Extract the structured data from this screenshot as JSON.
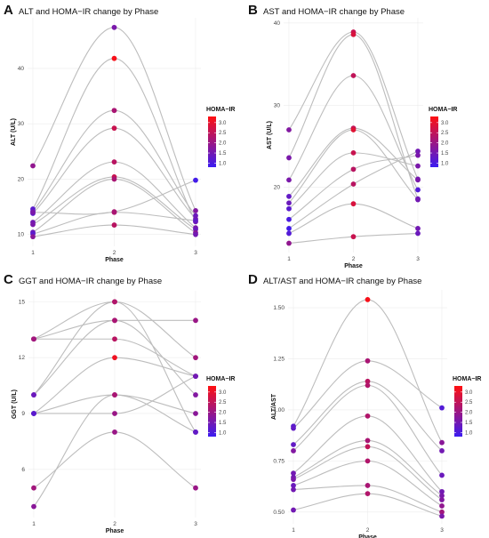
{
  "chart_data": [
    {
      "panel": "A",
      "type": "line",
      "title": "ALT and HOMA−IR change by Phase",
      "xlabel": "Phase",
      "ylabel": "ALT (U/L)",
      "x": [
        1,
        2,
        3
      ],
      "xticks": [
        "1",
        "2",
        "3"
      ],
      "yticks": [
        10,
        20,
        30,
        40
      ],
      "ylim": [
        8.5,
        48.5
      ],
      "legend": {
        "title": "HOMA−IR",
        "ticks": [
          1.0,
          1.5,
          2.0,
          2.5,
          3.0
        ],
        "range": [
          0.8,
          3.3
        ],
        "low_color": "#3b1cf2",
        "high_color": "#ff1010",
        "placement": "right"
      },
      "grid": true,
      "series": [
        {
          "values": [
            22.4,
            47.4,
            14.3
          ],
          "homa": [
            1.9,
            1.6,
            1.7
          ]
        },
        {
          "values": [
            14.6,
            41.8,
            12.3
          ],
          "homa": [
            1.2,
            3.2,
            1.5
          ]
        },
        {
          "values": [
            14.2,
            32.4,
            13.4
          ],
          "homa": [
            1.3,
            2.2,
            1.4
          ]
        },
        {
          "values": [
            13.8,
            29.2,
            12.8
          ],
          "homa": [
            1.2,
            2.6,
            1.5
          ]
        },
        {
          "values": [
            12.2,
            23.1,
            11.2
          ],
          "homa": [
            1.5,
            2.4,
            1.6
          ]
        },
        {
          "values": [
            11.8,
            20.4,
            10.9
          ],
          "homa": [
            1.6,
            2.6,
            1.4
          ]
        },
        {
          "values": [
            10.4,
            20.0,
            10.3
          ],
          "homa": [
            1.4,
            2.2,
            1.8
          ]
        },
        {
          "values": [
            10.1,
            14.0,
            12.5
          ],
          "homa": [
            1.2,
            2.3,
            1.3
          ]
        },
        {
          "values": [
            9.6,
            11.7,
            10.0
          ],
          "homa": [
            1.8,
            2.4,
            1.5
          ]
        },
        {
          "values": [
            14.0,
            14.1,
            19.8
          ],
          "homa": [
            1.6,
            2.2,
            0.9
          ]
        }
      ]
    },
    {
      "panel": "B",
      "type": "line",
      "title": "AST and HOMA−IR change by Phase",
      "xlabel": "Phase",
      "ylabel": "AST (U/L)",
      "x": [
        1,
        2,
        3
      ],
      "xticks": [
        "1",
        "2",
        "3"
      ],
      "yticks": [
        20,
        30,
        40
      ],
      "ylim": [
        12.5,
        40.2
      ],
      "legend": {
        "title": "HOMA−IR",
        "ticks": [
          1.0,
          1.5,
          2.0,
          2.5,
          3.0
        ],
        "range": [
          0.8,
          3.3
        ],
        "low_color": "#3b1cf2",
        "high_color": "#ff1010",
        "placement": "right"
      },
      "grid": true,
      "series": [
        {
          "values": [
            27.0,
            38.9,
            21.0
          ],
          "homa": [
            1.7,
            2.6,
            1.5
          ]
        },
        {
          "values": [
            23.6,
            38.6,
            18.6
          ],
          "homa": [
            1.6,
            2.8,
            1.4
          ]
        },
        {
          "values": [
            20.9,
            33.6,
            19.7
          ],
          "homa": [
            1.6,
            2.5,
            1.1
          ]
        },
        {
          "values": [
            18.9,
            27.2,
            20.9
          ],
          "homa": [
            1.3,
            2.5,
            1.6
          ]
        },
        {
          "values": [
            18.1,
            27.0,
            18.5
          ],
          "homa": [
            1.4,
            2.9,
            1.5
          ]
        },
        {
          "values": [
            17.4,
            24.2,
            22.6
          ],
          "homa": [
            1.2,
            2.6,
            1.6
          ]
        },
        {
          "values": [
            16.1,
            22.2,
            23.9
          ],
          "homa": [
            1.0,
            2.4,
            1.6
          ]
        },
        {
          "values": [
            15.0,
            20.4,
            24.4
          ],
          "homa": [
            0.9,
            2.4,
            1.5
          ]
        },
        {
          "values": [
            14.4,
            18.0,
            15.0
          ],
          "homa": [
            1.1,
            2.8,
            1.5
          ]
        },
        {
          "values": [
            13.2,
            14.0,
            14.4
          ],
          "homa": [
            1.9,
            2.6,
            1.4
          ]
        }
      ]
    },
    {
      "panel": "C",
      "type": "line",
      "title": "GGT and HOMA−IR change by Phase",
      "xlabel": "Phase",
      "ylabel": "GGT (U/L)",
      "x": [
        1,
        2,
        3
      ],
      "xticks": [
        "1",
        "2",
        "3"
      ],
      "yticks": [
        6,
        9,
        12,
        15
      ],
      "ylim": [
        3.6,
        15.4
      ],
      "legend": {
        "title": "HOMA−IR",
        "ticks": [
          1.0,
          1.5,
          2.0,
          2.5,
          3.0
        ],
        "range": [
          0.8,
          3.3
        ],
        "low_color": "#3b1cf2",
        "high_color": "#ff1010",
        "placement": "right"
      },
      "grid": true,
      "series": [
        {
          "values": [
            13,
            15,
            12
          ],
          "homa": [
            2.0,
            2.3,
            2.1
          ]
        },
        {
          "values": [
            13,
            14,
            14
          ],
          "homa": [
            2.1,
            2.1,
            2.0
          ]
        },
        {
          "values": [
            13,
            13,
            11
          ],
          "homa": [
            2.1,
            2.4,
            1.6
          ]
        },
        {
          "values": [
            10,
            14,
            10
          ],
          "homa": [
            1.6,
            2.2,
            1.7
          ]
        },
        {
          "values": [
            10,
            15,
            8
          ],
          "homa": [
            1.4,
            2.3,
            1.2
          ]
        },
        {
          "values": [
            9,
            12,
            11
          ],
          "homa": [
            1.2,
            3.1,
            1.4
          ]
        },
        {
          "values": [
            9,
            10,
            9
          ],
          "homa": [
            1.4,
            2.1,
            1.8
          ]
        },
        {
          "values": [
            9,
            9,
            11
          ],
          "homa": [
            1.2,
            2.0,
            1.5
          ]
        },
        {
          "values": [
            5,
            8,
            5
          ],
          "homa": [
            2.1,
            2.0,
            2.0
          ]
        },
        {
          "values": [
            4,
            10,
            8
          ],
          "homa": [
            1.8,
            2.2,
            1.3
          ]
        }
      ]
    },
    {
      "panel": "D",
      "type": "line",
      "title": "ALT/AST and HOMA−IR change by Phase",
      "xlabel": "Phase",
      "ylabel": "ALT/AST",
      "x": [
        1,
        2,
        3
      ],
      "xticks": [
        "1",
        "2",
        "3"
      ],
      "yticks": [
        0.5,
        0.75,
        1.0,
        1.25,
        1.5
      ],
      "ylim": [
        0.46,
        1.57
      ],
      "legend": {
        "title": "HOMA−IR",
        "ticks": [
          1.0,
          1.5,
          2.0,
          2.5,
          3.0
        ],
        "range": [
          0.8,
          3.3
        ],
        "low_color": "#3b1cf2",
        "high_color": "#ff1010",
        "placement": "right"
      },
      "grid": true,
      "series": [
        {
          "values": [
            0.92,
            1.54,
            0.84
          ],
          "homa": [
            1.2,
            3.2,
            1.8
          ]
        },
        {
          "values": [
            0.91,
            1.24,
            1.01
          ],
          "homa": [
            1.3,
            2.2,
            1.1
          ]
        },
        {
          "values": [
            0.83,
            1.14,
            0.8
          ],
          "homa": [
            1.3,
            2.4,
            1.5
          ]
        },
        {
          "values": [
            0.8,
            1.12,
            0.68
          ],
          "homa": [
            1.7,
            2.3,
            1.4
          ]
        },
        {
          "values": [
            0.69,
            0.97,
            0.6
          ],
          "homa": [
            1.5,
            2.3,
            1.5
          ]
        },
        {
          "values": [
            0.67,
            0.85,
            0.58
          ],
          "homa": [
            1.5,
            2.2,
            1.6
          ]
        },
        {
          "values": [
            0.66,
            0.82,
            0.56
          ],
          "homa": [
            1.6,
            2.5,
            1.7
          ]
        },
        {
          "values": [
            0.63,
            0.75,
            0.53
          ],
          "homa": [
            1.4,
            2.3,
            1.9
          ]
        },
        {
          "values": [
            0.61,
            0.63,
            0.5
          ],
          "homa": [
            1.5,
            2.2,
            2.1
          ]
        },
        {
          "values": [
            0.51,
            0.59,
            0.48
          ],
          "homa": [
            1.5,
            2.3,
            1.6
          ]
        }
      ]
    }
  ]
}
